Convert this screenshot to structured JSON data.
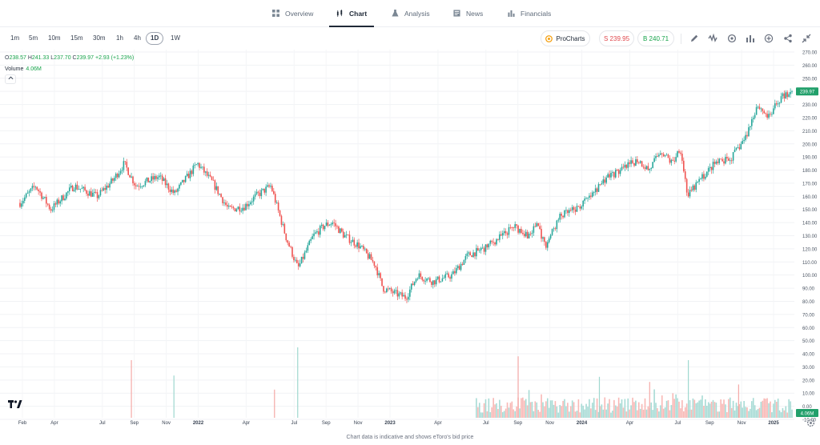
{
  "nav": {
    "tabs": [
      {
        "label": "Overview",
        "icon": "grid-icon"
      },
      {
        "label": "Chart",
        "icon": "candlestick-icon"
      },
      {
        "label": "Analysis",
        "icon": "flask-icon"
      },
      {
        "label": "News",
        "icon": "newspaper-icon"
      },
      {
        "label": "Financials",
        "icon": "bar-chart-icon"
      }
    ],
    "active": "Chart"
  },
  "toolbar": {
    "timeframes": [
      "1m",
      "5m",
      "10m",
      "15m",
      "30m",
      "1h",
      "4h",
      "1D",
      "1W"
    ],
    "selected_timeframe": "1D",
    "procharts_label": "ProCharts",
    "sell_label": "S 239.95",
    "buy_label": "B 240.71",
    "icons": [
      "pencil-icon",
      "indicators-icon",
      "compare-icon",
      "chart-type-icon",
      "add-alert-icon",
      "share-icon",
      "collapse-icon"
    ]
  },
  "legend": {
    "o_key": "O",
    "o_val": "238.57",
    "h_key": "H",
    "h_val": "241.33",
    "l_key": "L",
    "l_val": "237.70",
    "c_key": "C",
    "c_val": "239.97",
    "change": "+2.93 (+1.23%)",
    "volume_label": "Volume",
    "volume_val": "4.06M"
  },
  "price_tag": "239.97",
  "volume_tag": "4.06M",
  "footnote": "Chart data is indicative and shows eToro's bid price",
  "colors": {
    "up": "#26a69a",
    "down": "#ef5350",
    "up_vol": "#a7dbd5",
    "down_vol": "#f8b8b5",
    "tag": "#22a06b"
  },
  "chart_data": {
    "type": "candlestick",
    "x_labels": [
      "Feb",
      "Apr",
      "Jul",
      "Sep",
      "Nov",
      "2022",
      "Apr",
      "Jul",
      "Sep",
      "Nov",
      "2023",
      "Apr",
      "Jul",
      "Sep",
      "Nov",
      "2024",
      "Apr",
      "Jul",
      "Sep",
      "Nov",
      "2025"
    ],
    "y_ticks": [
      "270.00",
      "260.00",
      "250.00",
      "240.00",
      "230.00",
      "220.00",
      "210.00",
      "200.00",
      "190.00",
      "180.00",
      "170.00",
      "160.00",
      "150.00",
      "140.00",
      "130.00",
      "120.00",
      "110.00",
      "100.00",
      "90.00",
      "80.00",
      "70.00",
      "60.00",
      "50.00",
      "40.00",
      "30.00",
      "20.00",
      "10.00",
      "0.00",
      "-10.00"
    ],
    "ylim": [
      -10,
      270
    ],
    "price_path": [
      [
        0,
        155
      ],
      [
        0.02,
        168
      ],
      [
        0.04,
        150
      ],
      [
        0.07,
        168
      ],
      [
        0.1,
        160
      ],
      [
        0.12,
        172
      ],
      [
        0.135,
        185
      ],
      [
        0.15,
        168
      ],
      [
        0.18,
        175
      ],
      [
        0.2,
        162
      ],
      [
        0.23,
        185
      ],
      [
        0.25,
        170
      ],
      [
        0.27,
        150
      ],
      [
        0.29,
        152
      ],
      [
        0.305,
        160
      ],
      [
        0.325,
        168
      ],
      [
        0.345,
        128
      ],
      [
        0.36,
        105
      ],
      [
        0.38,
        130
      ],
      [
        0.395,
        138
      ],
      [
        0.405,
        140
      ],
      [
        0.42,
        130
      ],
      [
        0.44,
        122
      ],
      [
        0.46,
        108
      ],
      [
        0.47,
        90
      ],
      [
        0.49,
        85
      ],
      [
        0.5,
        83
      ],
      [
        0.515,
        100
      ],
      [
        0.535,
        95
      ],
      [
        0.56,
        100
      ],
      [
        0.58,
        115
      ],
      [
        0.6,
        120
      ],
      [
        0.62,
        128
      ],
      [
        0.64,
        137
      ],
      [
        0.66,
        130
      ],
      [
        0.67,
        140
      ],
      [
        0.68,
        122
      ],
      [
        0.7,
        145
      ],
      [
        0.72,
        150
      ],
      [
        0.74,
        160
      ],
      [
        0.76,
        175
      ],
      [
        0.78,
        180
      ],
      [
        0.8,
        188
      ],
      [
        0.815,
        180
      ],
      [
        0.83,
        195
      ],
      [
        0.845,
        185
      ],
      [
        0.855,
        198
      ],
      [
        0.865,
        160
      ],
      [
        0.88,
        172
      ],
      [
        0.9,
        185
      ],
      [
        0.92,
        188
      ],
      [
        0.94,
        205
      ],
      [
        0.955,
        230
      ],
      [
        0.97,
        220
      ],
      [
        0.985,
        235
      ],
      [
        1,
        240
      ]
    ],
    "volume_spikes": [
      [
        0.145,
        45
      ],
      [
        0.2,
        33
      ],
      [
        0.33,
        22
      ],
      [
        0.36,
        55
      ],
      [
        0.645,
        48
      ],
      [
        0.75,
        32
      ],
      [
        0.815,
        28
      ],
      [
        0.865,
        45
      ],
      [
        0.93,
        26
      ]
    ],
    "volume_dense_from": 0.59,
    "last_close": 239.97,
    "grid": true
  }
}
